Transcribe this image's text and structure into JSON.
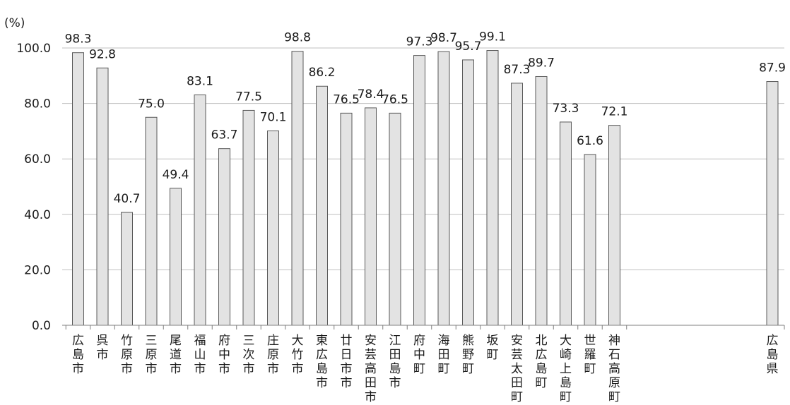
{
  "chart_data": {
    "type": "bar",
    "unit_label": "(%)",
    "ylim": [
      0,
      100
    ],
    "yticks": [
      "0.0",
      "20.0",
      "40.0",
      "60.0",
      "80.0",
      "100.0"
    ],
    "grid": true,
    "categories": [
      "広島市",
      "呉市",
      "竹原市",
      "三原市",
      "尾道市",
      "福山市",
      "府中市",
      "三次市",
      "庄原市",
      "大竹市",
      "東広島市",
      "廿日市市",
      "安芸高田市",
      "江田島市",
      "府中町",
      "海田町",
      "熊野町",
      "坂町",
      "安芸太田町",
      "北広島町",
      "大崎上島町",
      "世羅町",
      "神石高原町",
      "広島県"
    ],
    "values": [
      98.3,
      92.8,
      40.7,
      75.0,
      49.4,
      83.1,
      63.7,
      77.5,
      70.1,
      98.8,
      86.2,
      76.5,
      78.4,
      76.5,
      97.3,
      98.7,
      95.7,
      99.1,
      87.3,
      89.7,
      73.3,
      61.6,
      72.1,
      87.9
    ],
    "value_labels": [
      "98.3",
      "92.8",
      "40.7",
      "75.0",
      "49.4",
      "83.1",
      "63.7",
      "77.5",
      "70.1",
      "98.8",
      "86.2",
      "76.5",
      "78.4",
      "76.5",
      "97.3",
      "98.7",
      "95.7",
      "99.1",
      "87.3",
      "89.7",
      "73.3",
      "61.6",
      "72.1",
      "87.9"
    ],
    "colors": {
      "bar_fill": "#e3e3e3",
      "bar_stroke": "#595959",
      "grid": "#bfbfbf",
      "axis": "#7f7f7f"
    }
  }
}
